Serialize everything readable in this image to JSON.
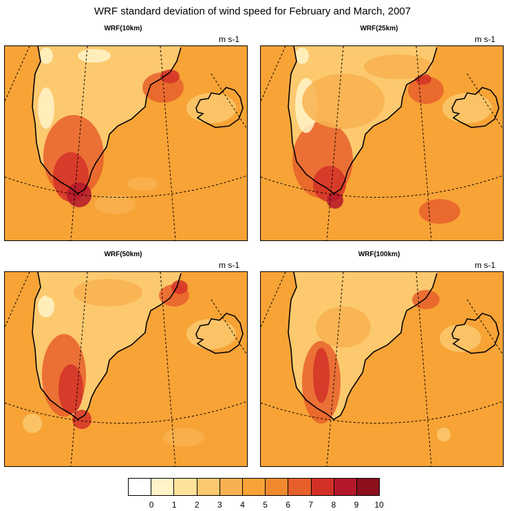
{
  "title": "WRF standard deviation of wind speed for February and March, 2007",
  "panels": [
    {
      "title": "WRF(10km)",
      "unit": "m s-1"
    },
    {
      "title": "WRF(25km)",
      "unit": "m s-1"
    },
    {
      "title": "WRF(50km)",
      "unit": "m s-1"
    },
    {
      "title": "WRF(100km)",
      "unit": "m s-1"
    }
  ],
  "colorbar": {
    "labels": [
      "0",
      "1",
      "2",
      "3",
      "4",
      "5",
      "6",
      "7",
      "8",
      "9",
      "10"
    ],
    "colors": [
      "#ffffff",
      "#fff3c8",
      "#ffe29a",
      "#fcc96e",
      "#f8b150",
      "#f7a336",
      "#f18a2e",
      "#e7602b",
      "#d33127",
      "#b4172a",
      "#8b0f1d"
    ]
  },
  "map_colors": {
    "background": "#f7a336",
    "ocean_low": "#f8b150",
    "land_low": "#fcc96e",
    "land_white": "#fff3c8",
    "strong": "#e7602b",
    "very_strong": "#d33127",
    "peak": "#b4172a",
    "coast": "#000000"
  }
}
